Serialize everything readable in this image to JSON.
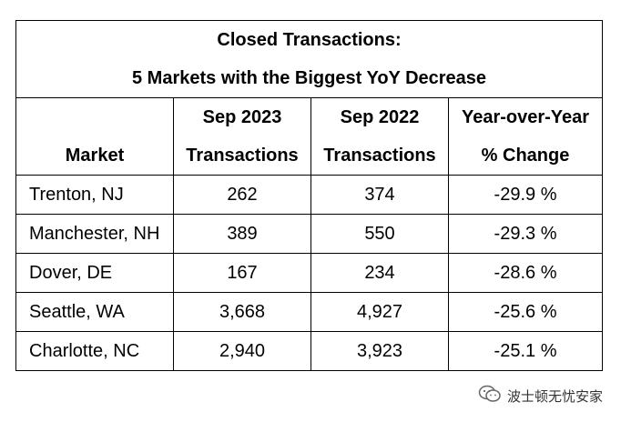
{
  "table": {
    "title_line1": "Closed Transactions:",
    "title_line2": "5 Markets with the Biggest YoY Decrease",
    "headers": {
      "market": "Market",
      "sep2023_line1": "Sep 2023",
      "sep2023_line2": "Transactions",
      "sep2022_line1": "Sep 2022",
      "sep2022_line2": "Transactions",
      "yoy_line1": "Year-over-Year",
      "yoy_line2": "% Change"
    },
    "rows": [
      {
        "market": "Trenton, NJ",
        "sep2023": "262",
        "sep2022": "374",
        "change": "-29.9 %"
      },
      {
        "market": "Manchester, NH",
        "sep2023": "389",
        "sep2022": "550",
        "change": "-29.3 %"
      },
      {
        "market": "Dover, DE",
        "sep2023": "167",
        "sep2022": "234",
        "change": "-28.6 %"
      },
      {
        "market": "Seattle, WA",
        "sep2023": "3,668",
        "sep2022": "4,927",
        "change": "-25.6 %"
      },
      {
        "market": "Charlotte, NC",
        "sep2023": "2,940",
        "sep2022": "3,923",
        "change": "-25.1 %"
      }
    ]
  },
  "watermark": {
    "icon": "wechat-icon",
    "text": "波士顿无忧安家"
  }
}
